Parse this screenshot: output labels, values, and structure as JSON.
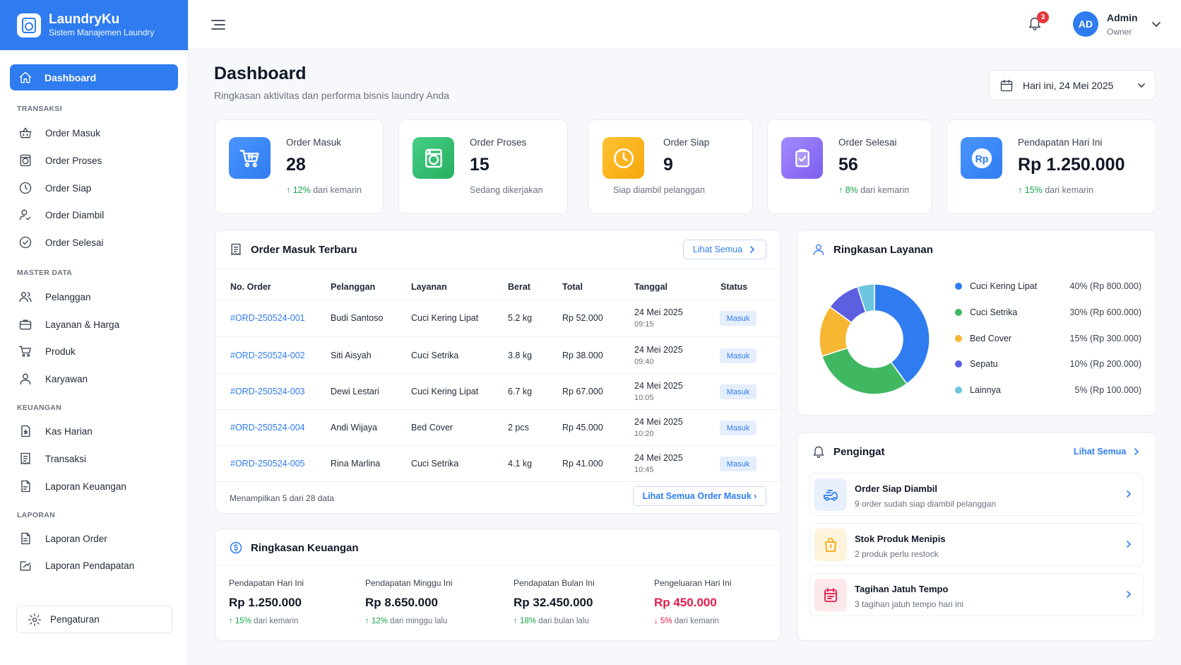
{
  "app": {
    "name": "LaundryKu",
    "tagline": "Sistem Manajemen Laundry"
  },
  "colors": {
    "primary": "#2f7cf0",
    "success": "#16a34a",
    "danger": "#e11d48",
    "warning": "#f5a70b"
  },
  "sidebar": {
    "active": {
      "label": "Dashboard",
      "icon": "home-icon"
    },
    "sections": [
      {
        "title": "TRANSAKSI",
        "items": [
          {
            "label": "Order Masuk",
            "icon": "basket-icon"
          },
          {
            "label": "Order Proses",
            "icon": "washer-icon"
          },
          {
            "label": "Order Siap",
            "icon": "clock-icon"
          },
          {
            "label": "Order Diambil",
            "icon": "user-pickup-icon"
          },
          {
            "label": "Order Selesai",
            "icon": "check-circle-icon"
          }
        ]
      },
      {
        "title": "MASTER DATA",
        "items": [
          {
            "label": "Pelanggan",
            "icon": "users-icon"
          },
          {
            "label": "Layanan & Harga",
            "icon": "briefcase-icon"
          },
          {
            "label": "Produk",
            "icon": "cart-icon"
          },
          {
            "label": "Karyawan",
            "icon": "user-icon"
          }
        ]
      },
      {
        "title": "KEUANGAN",
        "items": [
          {
            "label": "Kas Harian",
            "icon": "cash-icon"
          },
          {
            "label": "Transaksi",
            "icon": "receipt-icon"
          },
          {
            "label": "Laporan Keuangan",
            "icon": "report-icon"
          }
        ]
      },
      {
        "title": "LAPORAN",
        "items": [
          {
            "label": "Laporan Order",
            "icon": "document-icon"
          },
          {
            "label": "Laporan Pendapatan",
            "icon": "trend-icon"
          }
        ]
      }
    ],
    "settings": "Pengaturan"
  },
  "topbar": {
    "notif_count": "3",
    "avatar": "AD",
    "user_name": "Admin",
    "user_role": "Owner"
  },
  "page": {
    "title": "Dashboard",
    "subtitle": "Ringkasan aktivitas dan performa bisnis laundry Anda",
    "date": "Hari ini, 24 Mei 2025"
  },
  "stats": [
    {
      "label": "Order Masuk",
      "value": "28",
      "trend": "↑ 12%",
      "note": "dari kemarin",
      "color": "#2f7cf0"
    },
    {
      "label": "Order Proses",
      "value": "15",
      "trend": "",
      "note": "Sedang dikerjakan",
      "color": "#2fbf71"
    },
    {
      "label": "Order Siap",
      "value": "9",
      "trend": "",
      "note": "Siap diambil pelanggan",
      "color": "#f5a70b"
    },
    {
      "label": "Order Selesai",
      "value": "56",
      "trend": "↑ 8%",
      "note": "dari kemarin",
      "color": "#8b6cf0"
    },
    {
      "label": "Pendapatan Hari Ini",
      "value": "Rp 1.250.000",
      "trend": "↑ 15%",
      "note": "dari kemarin",
      "color": "#2f7cf0"
    }
  ],
  "orders": {
    "title": "Order Masuk Terbaru",
    "view_all": "Lihat Semua",
    "columns": [
      "No. Order",
      "Pelanggan",
      "Layanan",
      "Berat",
      "Total",
      "Tanggal",
      "Status"
    ],
    "rows": [
      {
        "id": "#ORD-250524-001",
        "customer": "Budi Santoso",
        "service": "Cuci Kering Lipat",
        "weight": "5.2 kg",
        "total": "Rp 52.000",
        "date": "24 Mei 2025",
        "time": "09:15",
        "status": "Masuk"
      },
      {
        "id": "#ORD-250524-002",
        "customer": "Siti Aisyah",
        "service": "Cuci Setrika",
        "weight": "3.8 kg",
        "total": "Rp 38.000",
        "date": "24 Mei 2025",
        "time": "09:40",
        "status": "Masuk"
      },
      {
        "id": "#ORD-250524-003",
        "customer": "Dewi Lestari",
        "service": "Cuci Kering Lipat",
        "weight": "6.7 kg",
        "total": "Rp 67.000",
        "date": "24 Mei 2025",
        "time": "10:05",
        "status": "Masuk"
      },
      {
        "id": "#ORD-250524-004",
        "customer": "Andi Wijaya",
        "service": "Bed Cover",
        "weight": "2 pcs",
        "total": "Rp 45.000",
        "date": "24 Mei 2025",
        "time": "10:20",
        "status": "Masuk"
      },
      {
        "id": "#ORD-250524-005",
        "customer": "Rina Marlina",
        "service": "Cuci Setrika",
        "weight": "4.1 kg",
        "total": "Rp 41.000",
        "date": "24 Mei 2025",
        "time": "10:45",
        "status": "Masuk"
      }
    ],
    "footer": "Menampilkan 5 dari 28 data",
    "footer_btn": "Lihat Semua Order Masuk ›"
  },
  "services": {
    "title": "Ringkasan Layanan",
    "items": [
      {
        "name": "Cuci Kering Lipat",
        "value": "40%  (Rp 800.000)",
        "color": "#2f7cf0"
      },
      {
        "name": "Cuci Setrika",
        "value": "30%  (Rp 600.000)",
        "color": "#3fb861"
      },
      {
        "name": "Bed Cover",
        "value": "15%  (Rp 300.000)",
        "color": "#f7b733"
      },
      {
        "name": "Sepatu",
        "value": "10%  (Rp 200.000)",
        "color": "#5b5fe0"
      },
      {
        "name": "Lainnya",
        "value": "5%  (Rp 100.000)",
        "color": "#6cc6df"
      }
    ]
  },
  "chart_data": {
    "type": "pie",
    "categories": [
      "Cuci Kering Lipat",
      "Cuci Setrika",
      "Bed Cover",
      "Sepatu",
      "Lainnya"
    ],
    "values": [
      40,
      30,
      15,
      10,
      5
    ],
    "title": "Ringkasan Layanan"
  },
  "reminders": {
    "title": "Pengingat",
    "view_all": "Lihat Semua",
    "items": [
      {
        "title": "Order Siap Diambil",
        "sub": "9 order sudah siap diambil pelanggan",
        "icon": "delivery-icon"
      },
      {
        "title": "Stok Produk Menipis",
        "sub": "2 produk perlu restock",
        "icon": "shopping-bag-icon"
      },
      {
        "title": "Tagihan Jatuh Tempo",
        "sub": "3 tagihan jatuh tempo hari ini",
        "icon": "calendar-icon"
      }
    ]
  },
  "finance": {
    "title": "Ringkasan Keuangan",
    "items": [
      {
        "label": "Pendapatan Hari Ini",
        "value": "Rp 1.250.000",
        "trend": "↑ 15%",
        "note": "dari kemarin"
      },
      {
        "label": "Pendapatan Minggu Ini",
        "value": "Rp 8.650.000",
        "trend": "↑ 12%",
        "note": "dari minggu lalu"
      },
      {
        "label": "Pendapatan Bulan Ini",
        "value": "Rp 32.450.000",
        "trend": "↑ 18%",
        "note": "dari bulan lalu"
      },
      {
        "label": "Pengeluaran Hari Ini",
        "value": "Rp 450.000",
        "trend": "↓ 5%",
        "note": "dari kemarin"
      }
    ]
  }
}
